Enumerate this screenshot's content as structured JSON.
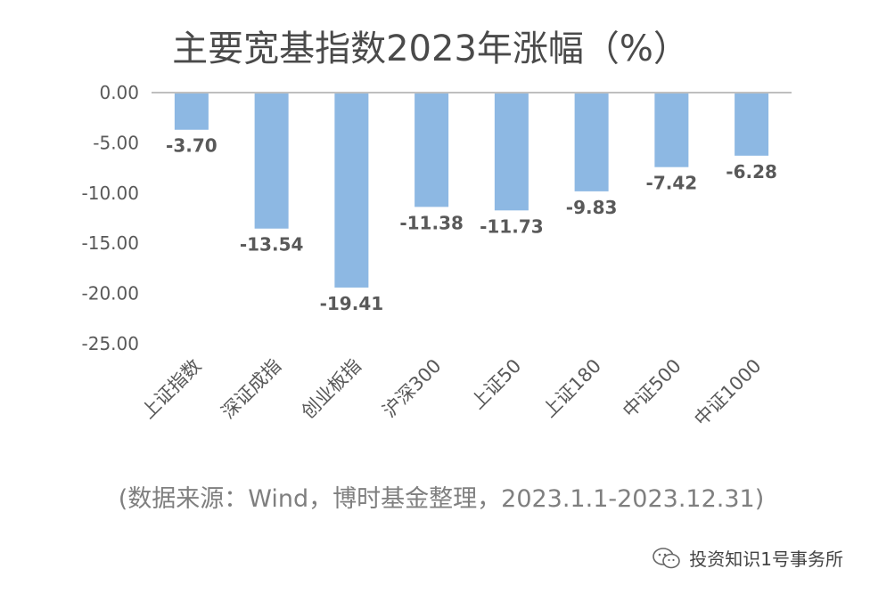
{
  "title": "主要宽基指数2023年涨幅（%）",
  "source_note": "(数据来源：Wind，博时基金整理，2023.1.1-2023.12.31)",
  "watermark": {
    "icon": "wechat-icon",
    "text": "投资知识1号事务所"
  },
  "colors": {
    "bar": "#8db8e3",
    "axis": "#bfbfbf",
    "tick_text": "#595959",
    "label_text": "#595959"
  },
  "chart_data": {
    "type": "bar",
    "title": "主要宽基指数2023年涨幅（%）",
    "categories": [
      "上证指数",
      "深证成指",
      "创业板指",
      "沪深300",
      "上证50",
      "上证180",
      "中证500",
      "中证1000"
    ],
    "values": [
      -3.7,
      -13.54,
      -19.41,
      -11.38,
      -11.73,
      -9.83,
      -7.42,
      -6.28
    ],
    "data_labels": [
      "-3.70",
      "-13.54",
      "-19.41",
      "-11.38",
      "-11.73",
      "-9.83",
      "-7.42",
      "-6.28"
    ],
    "ylim": [
      -25,
      0
    ],
    "yticks": [
      0,
      -5,
      -10,
      -15,
      -20,
      -25
    ],
    "ytick_labels": [
      "0.00",
      "-5.00",
      "-10.00",
      "-15.00",
      "-20.00",
      "-25.00"
    ],
    "grid": false,
    "legend": "none",
    "xlabel": "",
    "ylabel": ""
  }
}
